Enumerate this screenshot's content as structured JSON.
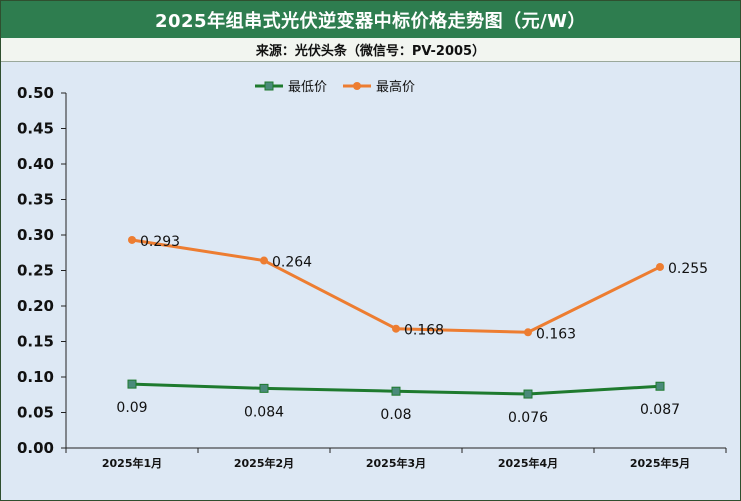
{
  "title": "2025年组串式光伏逆变器中标价格走势图（元/W）",
  "source": "来源：光伏头条（微信号：PV-2005）",
  "colors": {
    "header": "#2e7d4f",
    "plot_bg": "#dde8f4",
    "min_series": "#1e7a2e",
    "max_series": "#ed7d31"
  },
  "chart_data": {
    "type": "line",
    "title": "2025年组串式光伏逆变器中标价格走势图（元/W）",
    "categories": [
      "2025年1月",
      "2025年2月",
      "2025年3月",
      "2025年4月",
      "2025年5月"
    ],
    "series": [
      {
        "name": "最低价",
        "values": [
          0.09,
          0.084,
          0.08,
          0.076,
          0.087
        ],
        "labels": [
          "0.09",
          "0.084",
          "0.08",
          "0.076",
          "0.087"
        ],
        "color": "#1e7a2e",
        "marker": "square"
      },
      {
        "name": "最高价",
        "values": [
          0.293,
          0.264,
          0.168,
          0.163,
          0.255
        ],
        "labels": [
          "0.293",
          "0.264",
          "0.168",
          "0.163",
          "0.255"
        ],
        "color": "#ed7d31",
        "marker": "circle"
      }
    ],
    "ylim": [
      0,
      0.5
    ],
    "yticks": [
      "0.00",
      "0.05",
      "0.10",
      "0.15",
      "0.20",
      "0.25",
      "0.30",
      "0.35",
      "0.40",
      "0.45",
      "0.50"
    ],
    "grid": false,
    "legend_position": "top-center",
    "xlabel": "",
    "ylabel": ""
  }
}
